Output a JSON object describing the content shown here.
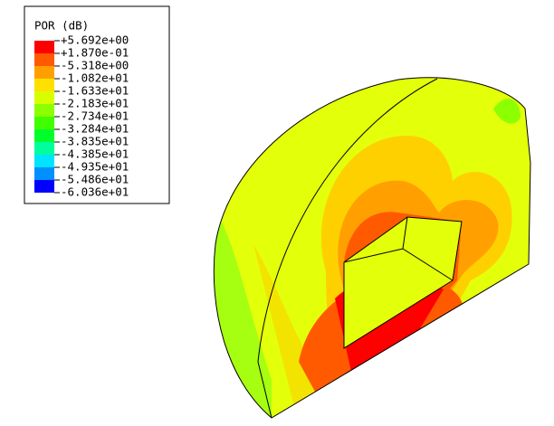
{
  "legend": {
    "title": "POR (dB)",
    "labels": [
      "+5.692e+00",
      "+1.870e-01",
      "-5.318e+00",
      "-1.082e+01",
      "-1.633e+01",
      "-2.183e+01",
      "-2.734e+01",
      "-3.284e+01",
      "-3.835e+01",
      "-4.385e+01",
      "-4.935e+01",
      "-5.486e+01",
      "-6.036e+01"
    ],
    "colors": [
      "#ff0000",
      "#ff5a00",
      "#ffa000",
      "#ffe000",
      "#d8ff00",
      "#8cff00",
      "#40ff00",
      "#00ff2a",
      "#00ff9c",
      "#00e4ff",
      "#0090ff",
      "#0000ff"
    ]
  }
}
